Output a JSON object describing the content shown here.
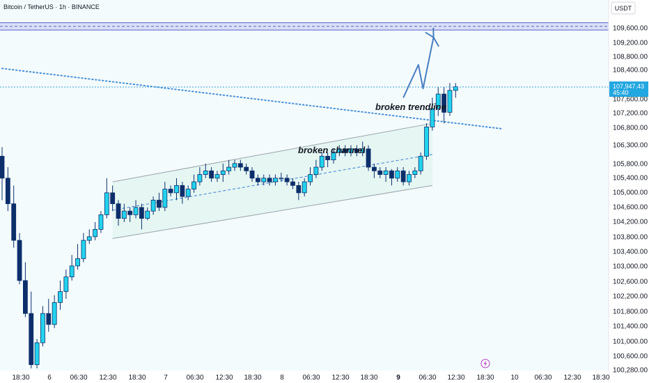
{
  "header": {
    "symbol_title": "Bitcoin / TetherUS · 1h · BINANCE"
  },
  "price_scale": {
    "currency": "USDT",
    "ticks": [
      "109,600.00",
      "109,200.00",
      "108,800.00",
      "108,400.00",
      "107,600.00",
      "107,200.00",
      "106,800.00",
      "106,300.00",
      "105,800.00",
      "105,400.00",
      "105,000.00",
      "104,600.00",
      "104,200.00",
      "103,800.00",
      "103,400.00",
      "103,000.00",
      "102,600.00",
      "102,200.00",
      "101,800.00",
      "101,400.00",
      "101,000.00",
      "100,600.00",
      "100,280.00"
    ]
  },
  "current_price": {
    "price": "107,947.43",
    "countdown": "45:40"
  },
  "annotations": {
    "trendline": "broken trendline",
    "channel": "broken channel"
  },
  "time_axis": {
    "labels": [
      {
        "text": "18:30",
        "bold": false
      },
      {
        "text": "6",
        "bold": false
      },
      {
        "text": "06:30",
        "bold": false
      },
      {
        "text": "12:30",
        "bold": false
      },
      {
        "text": "18:30",
        "bold": false
      },
      {
        "text": "7",
        "bold": false
      },
      {
        "text": "06:30",
        "bold": false
      },
      {
        "text": "12:30",
        "bold": false
      },
      {
        "text": "18:30",
        "bold": false
      },
      {
        "text": "8",
        "bold": false
      },
      {
        "text": "06:30",
        "bold": false
      },
      {
        "text": "12:30",
        "bold": false
      },
      {
        "text": "18:30",
        "bold": false
      },
      {
        "text": "9",
        "bold": true
      },
      {
        "text": "06:30",
        "bold": false
      },
      {
        "text": "12:30",
        "bold": false
      },
      {
        "text": "18:30",
        "bold": false
      },
      {
        "text": "10",
        "bold": false
      },
      {
        "text": "06:30",
        "bold": false
      },
      {
        "text": "12:30",
        "bold": false
      },
      {
        "text": "18:30",
        "bold": false
      }
    ]
  },
  "colors": {
    "bull": "#22d3ee",
    "bear": "#0c2f6b",
    "wick": "#0c2f6b",
    "trend": "#4a8fd8",
    "arrow": "#4a7ec0",
    "resistance_fill": "#c5cbf0",
    "channel_fill": "#e3f5f2"
  },
  "chart_data": {
    "type": "candlestick",
    "symbol": "BTCUSDT",
    "interval": "1h",
    "y_range": [
      100280,
      109800
    ],
    "resistance_zone": [
      109550,
      109750
    ],
    "candles": [
      [
        106100,
        105500,
        106350,
        104900
      ],
      [
        105500,
        104800,
        105800,
        104600
      ],
      [
        104800,
        103800,
        105300,
        103600
      ],
      [
        103800,
        102700,
        104000,
        102600
      ],
      [
        102700,
        101800,
        103200,
        101700
      ],
      [
        101800,
        100400,
        102400,
        100300
      ],
      [
        100400,
        101000,
        101100,
        100300
      ],
      [
        101000,
        101800,
        102000,
        100900
      ],
      [
        101800,
        101500,
        102200,
        101300
      ],
      [
        101500,
        102100,
        102300,
        101400
      ],
      [
        102100,
        102400,
        102700,
        101900
      ],
      [
        102400,
        102800,
        103000,
        102200
      ],
      [
        102800,
        103100,
        103400,
        102700
      ],
      [
        103100,
        103300,
        103700,
        103000
      ],
      [
        103300,
        103800,
        104000,
        103200
      ],
      [
        103800,
        103900,
        104100,
        103700
      ],
      [
        103900,
        104100,
        104300,
        103800
      ],
      [
        104100,
        104500,
        104600,
        104000
      ],
      [
        104500,
        105100,
        105500,
        104400
      ],
      [
        105100,
        104800,
        105300,
        104600
      ],
      [
        104800,
        104400,
        104900,
        104200
      ],
      [
        104400,
        104600,
        104800,
        104300
      ],
      [
        104600,
        104500,
        104700,
        104300
      ],
      [
        104500,
        104700,
        104900,
        104400
      ],
      [
        104700,
        104400,
        104800,
        104100
      ],
      [
        104400,
        104600,
        104700,
        104350
      ],
      [
        104600,
        104900,
        105000,
        104500
      ],
      [
        104900,
        104700,
        105100,
        104600
      ],
      [
        104700,
        105200,
        105400,
        104600
      ],
      [
        105200,
        105100,
        105300,
        105000
      ],
      [
        105100,
        105300,
        105500,
        104900
      ],
      [
        105300,
        105000,
        105400,
        104800
      ],
      [
        105000,
        105200,
        105300,
        104900
      ],
      [
        105200,
        105400,
        105600,
        105100
      ],
      [
        105400,
        105600,
        105800,
        105300
      ],
      [
        105600,
        105700,
        105900,
        105500
      ],
      [
        105700,
        105500,
        105800,
        105400
      ],
      [
        105500,
        105600,
        105700,
        105400
      ],
      [
        105600,
        105700,
        105900,
        105400
      ],
      [
        105700,
        105800,
        106000,
        105600
      ],
      [
        105800,
        105900,
        106000,
        105700
      ],
      [
        105900,
        105800,
        106000,
        105700
      ],
      [
        105800,
        105700,
        105900,
        105600
      ],
      [
        105700,
        105500,
        105800,
        105400
      ],
      [
        105500,
        105400,
        105600,
        105300
      ],
      [
        105400,
        105500,
        105600,
        105300
      ],
      [
        105500,
        105400,
        105600,
        105300
      ],
      [
        105400,
        105500,
        105600,
        105300
      ],
      [
        105500,
        105500,
        105650,
        105400
      ],
      [
        105500,
        105400,
        105600,
        105300
      ],
      [
        105400,
        105300,
        105500,
        105200
      ],
      [
        105300,
        105100,
        105400,
        104900
      ],
      [
        105100,
        105400,
        105500,
        105000
      ],
      [
        105400,
        105600,
        105800,
        105300
      ],
      [
        105600,
        105800,
        106000,
        105500
      ],
      [
        105800,
        106100,
        106200,
        105700
      ],
      [
        106100,
        106000,
        106200,
        105800
      ],
      [
        106000,
        106200,
        106300,
        105900
      ],
      [
        106200,
        106300,
        106400,
        106100
      ],
      [
        106300,
        106200,
        106400,
        106100
      ],
      [
        106200,
        106300,
        106400,
        106100
      ],
      [
        106300,
        106200,
        106400,
        106100
      ],
      [
        106200,
        106300,
        106500,
        106100
      ],
      [
        106300,
        105800,
        106400,
        105700
      ],
      [
        105800,
        105700,
        105900,
        105500
      ],
      [
        105700,
        105600,
        105800,
        105500
      ],
      [
        105600,
        105700,
        105800,
        105400
      ],
      [
        105700,
        105500,
        105750,
        105300
      ],
      [
        105500,
        105700,
        105800,
        105400
      ],
      [
        105700,
        105400,
        105800,
        105300
      ],
      [
        105400,
        105600,
        105700,
        105300
      ],
      [
        105600,
        105700,
        105800,
        105500
      ],
      [
        105700,
        106100,
        106200,
        105600
      ],
      [
        106100,
        106900,
        107000,
        106000
      ],
      [
        106900,
        107400,
        107700,
        106800
      ],
      [
        107400,
        107800,
        108000,
        107200
      ],
      [
        107800,
        107300,
        108000,
        107000
      ],
      [
        107300,
        107900,
        108100,
        107200
      ],
      [
        107900,
        108000,
        108100,
        107700
      ]
    ],
    "channel": {
      "upper": [
        [
          19,
          105400
        ],
        [
          74,
          107000
        ]
      ],
      "mid": [
        [
          19,
          104625
        ],
        [
          74,
          106150
        ]
      ],
      "lower": [
        [
          19,
          103850
        ],
        [
          74,
          105300
        ]
      ]
    },
    "trendline": [
      [
        0,
        108500
      ],
      [
        86,
        106850
      ]
    ],
    "projection_path": [
      [
        69,
        107700
      ],
      [
        71.6,
        108600
      ],
      [
        72.4,
        107950
      ],
      [
        74.2,
        109350
      ],
      [
        75.1,
        109100
      ]
    ]
  }
}
